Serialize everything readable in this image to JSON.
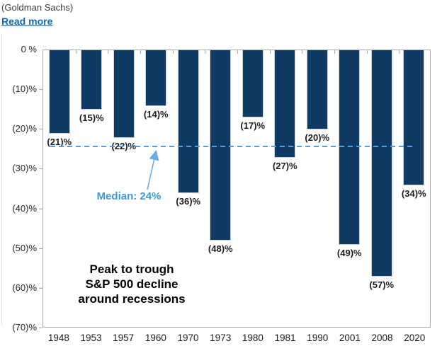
{
  "header": {
    "source": "(Goldman Sachs)",
    "read_more": "Read more"
  },
  "colors": {
    "bar": "#0e3a63",
    "bar_border": "#ccd2d8",
    "median_line": "#4f9fdf",
    "median_text": "#3f98dc",
    "axis": "#a9a9a9",
    "link": "#1067b7",
    "label_text": "#1c1c1c"
  },
  "chart_data": {
    "type": "bar",
    "title": "Peak to trough S&P 500 decline around recessions",
    "categories": [
      "1948",
      "1953",
      "1957",
      "1960",
      "1970",
      "1973",
      "1980",
      "1981",
      "1990",
      "2001",
      "2008",
      "2020"
    ],
    "values": [
      -21,
      -15,
      -22,
      -14,
      -36,
      -48,
      -17,
      -27,
      -20,
      -49,
      -57,
      -34
    ],
    "bar_labels": [
      "(21)%",
      "(15)%",
      "(22)%",
      "(14)%",
      "(36)%",
      "(48)%",
      "(17)%",
      "(27)%",
      "(20)%",
      "(49)%",
      "(57)%",
      "(34)%"
    ],
    "y_tick_labels": [
      "0 %",
      "(10)%",
      "(20)%",
      "(30)%",
      "(40)%",
      "(50)%",
      "(60)%",
      "(70)%"
    ],
    "ylim": [
      -70,
      0
    ],
    "ylabel": "",
    "xlabel": "",
    "grid": false,
    "legend": false,
    "median": {
      "value": -24,
      "label": "Median: 24%"
    },
    "annotation": "Peak to trough\nS&P 500 decline\naround recessions"
  }
}
